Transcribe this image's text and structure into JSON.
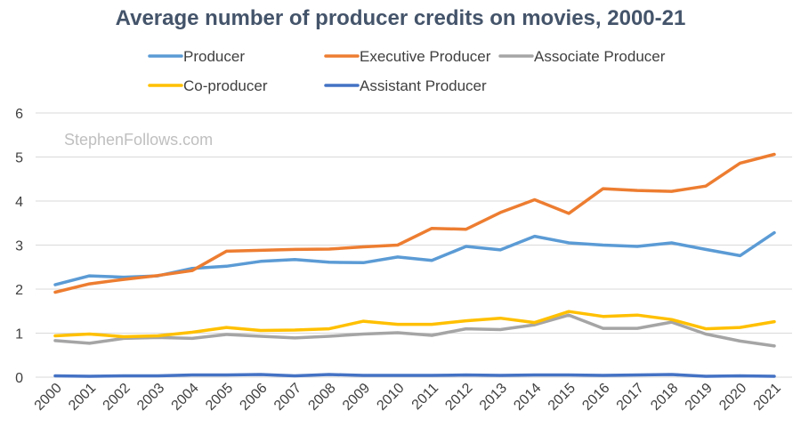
{
  "chart_data": {
    "type": "line",
    "title": "Average number of producer credits on movies, 2000-21",
    "watermark": "StephenFollows.com",
    "xlabel": "",
    "ylabel": "",
    "ylim": [
      0,
      6
    ],
    "yticks": [
      "0",
      "1",
      "2",
      "3",
      "4",
      "5",
      "6"
    ],
    "grid": true,
    "legend_position": "top",
    "categories": [
      "2000",
      "2001",
      "2002",
      "2003",
      "2004",
      "2005",
      "2006",
      "2007",
      "2008",
      "2009",
      "2010",
      "2011",
      "2012",
      "2013",
      "2014",
      "2015",
      "2016",
      "2017",
      "2018",
      "2019",
      "2020",
      "2021"
    ],
    "series": [
      {
        "name": "Producer",
        "color": "#5b9bd5",
        "values": [
          2.1,
          2.3,
          2.27,
          2.3,
          2.47,
          2.52,
          2.63,
          2.67,
          2.61,
          2.6,
          2.73,
          2.65,
          2.97,
          2.89,
          3.2,
          3.05,
          3.0,
          2.97,
          3.05,
          2.9,
          2.76,
          3.28
        ]
      },
      {
        "name": "Executive Producer",
        "color": "#ed7d31",
        "values": [
          1.93,
          2.12,
          2.22,
          2.31,
          2.42,
          2.86,
          2.88,
          2.9,
          2.91,
          2.96,
          3.0,
          3.38,
          3.36,
          3.74,
          4.03,
          3.72,
          4.28,
          4.24,
          4.22,
          4.34,
          4.86,
          5.06
        ]
      },
      {
        "name": "Associate Producer",
        "color": "#a5a5a5",
        "values": [
          0.83,
          0.77,
          0.88,
          0.9,
          0.88,
          0.97,
          0.93,
          0.89,
          0.93,
          0.98,
          1.01,
          0.95,
          1.1,
          1.08,
          1.19,
          1.41,
          1.11,
          1.11,
          1.25,
          0.98,
          0.82,
          0.71
        ]
      },
      {
        "name": "Co-producer",
        "color": "#ffc000",
        "values": [
          0.94,
          0.98,
          0.92,
          0.94,
          1.02,
          1.13,
          1.06,
          1.07,
          1.1,
          1.27,
          1.2,
          1.2,
          1.28,
          1.34,
          1.24,
          1.49,
          1.38,
          1.41,
          1.31,
          1.1,
          1.13,
          1.26
        ]
      },
      {
        "name": "Assistant Producer",
        "color": "#4472c4",
        "values": [
          0.03,
          0.02,
          0.03,
          0.03,
          0.05,
          0.05,
          0.06,
          0.03,
          0.06,
          0.04,
          0.04,
          0.04,
          0.05,
          0.04,
          0.05,
          0.05,
          0.04,
          0.05,
          0.06,
          0.02,
          0.03,
          0.02
        ]
      }
    ]
  }
}
